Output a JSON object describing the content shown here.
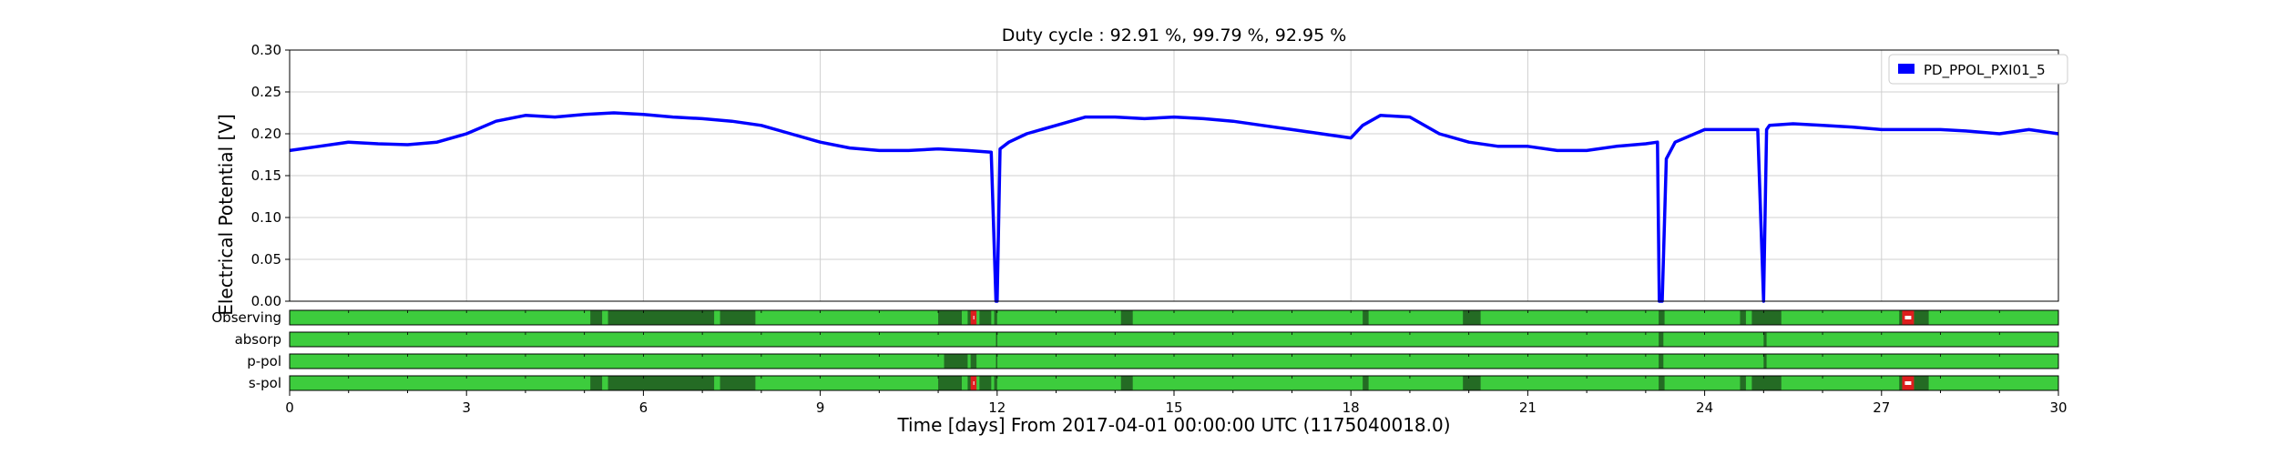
{
  "chart_data": {
    "type": "line",
    "title": "Duty cycle : 92.91 %, 99.79 %, 92.95 %",
    "xlabel": "Time [days] From 2017-04-01 00:00:00 UTC (1175040018.0)",
    "ylabel": "Electrical Potential [V]",
    "xlim": [
      0,
      30
    ],
    "ylim": [
      0,
      0.3
    ],
    "x_ticks": [
      0,
      3,
      6,
      9,
      12,
      15,
      18,
      21,
      24,
      27,
      30
    ],
    "x_tick_labels": [
      "0",
      "3",
      "6",
      "9",
      "12",
      "15",
      "18",
      "21",
      "24",
      "27",
      "30"
    ],
    "y_ticks": [
      0,
      0.05,
      0.1,
      0.15,
      0.2,
      0.25,
      0.3
    ],
    "y_tick_labels": [
      "0.00",
      "0.05",
      "0.10",
      "0.15",
      "0.20",
      "0.25",
      "0.30"
    ],
    "grid": true,
    "legend_position": "top-right",
    "series": [
      {
        "name": "PD_PPOL_PXI01_5",
        "color": "#0000ff",
        "x": [
          0,
          0.5,
          1,
          1.5,
          2,
          2.5,
          3,
          3.5,
          4,
          4.5,
          5,
          5.5,
          6,
          6.5,
          7,
          7.5,
          8,
          8.5,
          9,
          9.5,
          10,
          10.5,
          11,
          11.5,
          11.9,
          11.98,
          12.0,
          12.05,
          12.2,
          12.5,
          13,
          13.5,
          14,
          14.5,
          15,
          15.5,
          16,
          16.5,
          17,
          17.5,
          18,
          18.2,
          18.5,
          19,
          19.5,
          20,
          20.5,
          21,
          21.5,
          22,
          22.5,
          23,
          23.2,
          23.23,
          23.28,
          23.35,
          23.5,
          24,
          24.5,
          24.9,
          25.0,
          25.05,
          25.1,
          25.5,
          26,
          26.5,
          27,
          27.5,
          28,
          28.5,
          29,
          29.5,
          30
        ],
        "y": [
          0.18,
          0.185,
          0.19,
          0.188,
          0.187,
          0.19,
          0.2,
          0.215,
          0.222,
          0.22,
          0.223,
          0.225,
          0.223,
          0.22,
          0.218,
          0.215,
          0.21,
          0.2,
          0.19,
          0.183,
          0.18,
          0.18,
          0.182,
          0.18,
          0.178,
          0.0,
          0.0,
          0.182,
          0.19,
          0.2,
          0.21,
          0.22,
          0.22,
          0.218,
          0.22,
          0.218,
          0.215,
          0.21,
          0.205,
          0.2,
          0.195,
          0.21,
          0.222,
          0.22,
          0.2,
          0.19,
          0.185,
          0.185,
          0.18,
          0.18,
          0.185,
          0.188,
          0.19,
          0.0,
          0.0,
          0.17,
          0.19,
          0.205,
          0.205,
          0.205,
          0.0,
          0.205,
          0.21,
          0.212,
          0.21,
          0.208,
          0.205,
          0.205,
          0.205,
          0.203,
          0.2,
          0.205,
          0.2
        ]
      }
    ],
    "segment_rows": [
      {
        "label": "Observing",
        "inactive": [
          [
            5.1,
            5.3
          ],
          [
            5.4,
            7.2
          ],
          [
            7.3,
            7.9
          ],
          [
            11.0,
            11.4
          ],
          [
            11.5,
            11.6
          ],
          [
            11.7,
            11.9
          ],
          [
            11.95,
            12.0
          ],
          [
            14.1,
            14.3
          ],
          [
            18.2,
            18.3
          ],
          [
            19.9,
            20.2
          ],
          [
            23.22,
            23.32
          ],
          [
            24.6,
            24.7
          ],
          [
            24.8,
            25.3
          ],
          [
            27.3,
            27.35
          ],
          [
            27.55,
            27.8
          ]
        ],
        "errors": [
          [
            11.55,
            11.65
          ],
          [
            27.35,
            27.55
          ]
        ]
      },
      {
        "label": "absorp",
        "inactive": [
          [
            11.98,
            12.0
          ],
          [
            23.22,
            23.3
          ],
          [
            25.0,
            25.05
          ]
        ],
        "errors": []
      },
      {
        "label": "p-pol",
        "inactive": [
          [
            11.1,
            11.5
          ],
          [
            11.55,
            11.65
          ],
          [
            11.98,
            12.0
          ],
          [
            23.22,
            23.3
          ],
          [
            25.0,
            25.05
          ]
        ],
        "errors": []
      },
      {
        "label": "s-pol",
        "inactive": [
          [
            5.1,
            5.3
          ],
          [
            5.4,
            7.2
          ],
          [
            7.3,
            7.9
          ],
          [
            11.0,
            11.4
          ],
          [
            11.5,
            11.6
          ],
          [
            11.7,
            11.9
          ],
          [
            11.95,
            12.0
          ],
          [
            14.1,
            14.3
          ],
          [
            18.2,
            18.3
          ],
          [
            19.9,
            20.2
          ],
          [
            23.22,
            23.32
          ],
          [
            24.6,
            24.7
          ],
          [
            24.8,
            25.3
          ],
          [
            27.3,
            27.35
          ],
          [
            27.55,
            27.8
          ]
        ],
        "errors": [
          [
            11.55,
            11.65
          ],
          [
            27.35,
            27.55
          ]
        ]
      }
    ],
    "segment_colors": {
      "active": "#3dcc3d",
      "inactive": "#246b24",
      "error": "#dd1e1e",
      "error_center": "#ffffff"
    }
  }
}
